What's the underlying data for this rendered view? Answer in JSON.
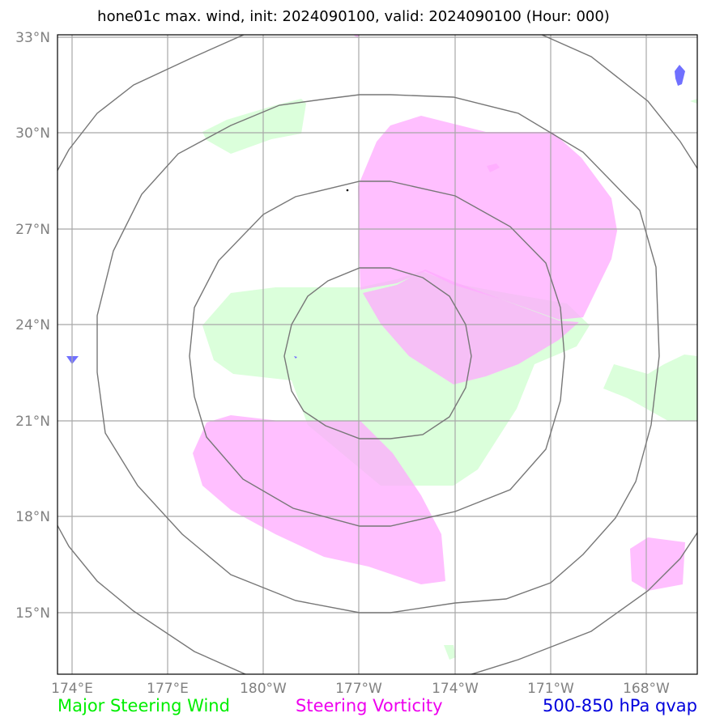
{
  "title": "hone01c max. wind, init: 2024090100, valid: 2024090100 (Hour: 000)",
  "lat_labels": [
    "33°N",
    "30°N",
    "27°N",
    "24°N",
    "21°N",
    "18°N",
    "15°N"
  ],
  "lon_labels": [
    "174°E",
    "177°E",
    "180°W",
    "177°W",
    "174°W",
    "171°W",
    "168°W"
  ],
  "legend": {
    "wind": "Major Steering Wind",
    "vorticity": "Steering Vorticity",
    "qvap": "500-850 hPa qvap"
  },
  "colors": {
    "wind_label": "#00ee00",
    "vorticity_label": "#ee00ee",
    "qvap_label": "#0000dd",
    "wind_fill": "#ccffcc",
    "vorticity_fill": "#ffaaff",
    "qvap_fill": "#7070ff",
    "gridline": "#a8a8a8",
    "range_ring": "#777777"
  }
}
